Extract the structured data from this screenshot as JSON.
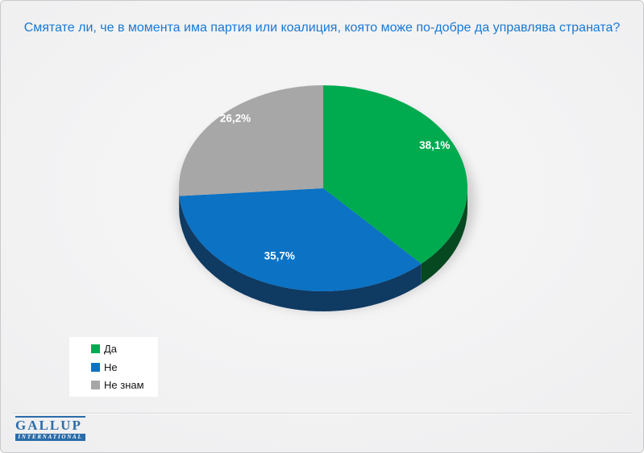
{
  "chart_data": {
    "type": "pie",
    "style": "3d",
    "title": "Смятате ли, че в момента има партия или коалиция, която може по-добре да управлява страната?",
    "start_angle_deg": 0,
    "direction": "clockwise",
    "legend_position": "bottom-left",
    "grid": false,
    "data_label_color": "#FFFFFF",
    "slices": [
      {
        "label": "Да",
        "value": 38.1,
        "display": "38,1%",
        "color": "#00AB50",
        "side_color": "#06481F"
      },
      {
        "label": "Не",
        "value": 35.7,
        "display": "35,7%",
        "color": "#0B72C4",
        "side_color": "#0F3A62"
      },
      {
        "label": "Не знам",
        "value": 26.2,
        "display": "26,2%",
        "color": "#A7A7A7",
        "side_color": "#6E6E6E"
      }
    ]
  },
  "theme": {
    "title_color": "#1878D4",
    "logo_color": "#2B6CA9",
    "background": "#F2F2F3",
    "border_color": "#C9C9CB"
  },
  "logo": {
    "name": "GALLUP",
    "subtext": "INTERNATIONAL"
  }
}
